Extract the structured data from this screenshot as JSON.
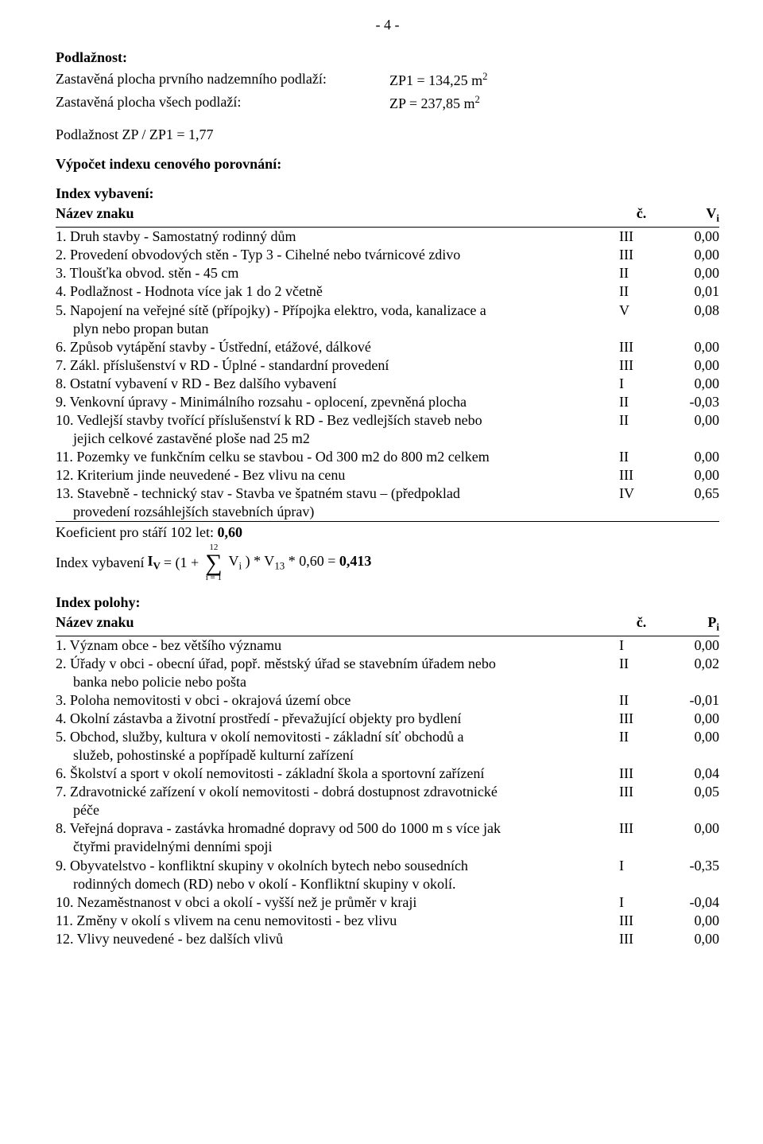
{
  "page_number": "- 4 -",
  "section1": {
    "title": "Podlažnost:",
    "line1a": "Zastavěná plocha prvního nadzemního podlaží:",
    "line1b_prefix": "ZP1 = 134,25 m",
    "line2a": "Zastavěná plocha všech podlaží:",
    "line2b_prefix": "ZP = 237,85 m",
    "sup": "2",
    "line3": "Podlažnost   ZP / ZP1 = 1,77"
  },
  "calc_title": "Výpočet indexu cenového porovnání:",
  "vyb": {
    "title": "Index vybavení:",
    "hdr_name": "Název znaku",
    "hdr_mark": "č.",
    "hdr_val_pre": "V",
    "hdr_val_sub": "i",
    "rows": [
      {
        "name": "1. Druh stavby - Samostatný rodinný dům",
        "mark": "III",
        "val": "0,00"
      },
      {
        "name": "2. Provedení obvodových stěn - Typ 3 - Cihelné nebo tvárnicové zdivo",
        "mark": "III",
        "val": "0,00"
      },
      {
        "name": "3. Tloušťka obvod. stěn - 45 cm",
        "mark": "II",
        "val": "0,00"
      },
      {
        "name": "4. Podlažnost - Hodnota více jak 1 do 2 včetně",
        "mark": "II",
        "val": "0,01"
      },
      {
        "name": "5. Napojení na veřejné sítě (přípojky) - Přípojka elektro, voda,  kanalizace  a",
        "mark": "V",
        "val": "0,08",
        "cont": "plyn nebo propan butan"
      },
      {
        "name": "6. Způsob vytápění stavby - Ústřední, etážové, dálkové",
        "mark": "III",
        "val": "0,00"
      },
      {
        "name": "7. Zákl. příslušenství v RD - Úplné - standardní provedení",
        "mark": "III",
        "val": "0,00"
      },
      {
        "name": "8. Ostatní vybavení v RD - Bez dalšího vybavení",
        "mark": "I",
        "val": "0,00"
      },
      {
        "name": "9. Venkovní úpravy - Minimálního rozsahu - oplocení, zpevněná plocha",
        "mark": "II",
        "val": "-0,03"
      },
      {
        "name": "10. Vedlejší stavby tvořící příslušenství k RD - Bez vedlejších staveb nebo",
        "mark": "II",
        "val": "0,00",
        "cont": "jejich celkové zastavěné  ploše  nad 25 m2"
      },
      {
        "name": "11. Pozemky ve funkčním celku  se stavbou - Od 300 m2 do 800 m2 celkem",
        "mark": "II",
        "val": "0,00"
      },
      {
        "name": "12. Kriterium jinde neuvedené - Bez vlivu na cenu",
        "mark": "III",
        "val": "0,00"
      },
      {
        "name": "13. Stavebně - technický stav - Stavba ve špatném stavu – (předpoklad",
        "mark": "IV",
        "val": "0,65",
        "cont": "provedení rozsáhlejších stavebních úprav)"
      }
    ],
    "coef_line_pre": "Koeficient pro stáří 102 let:   ",
    "coef_line_val": "0,60",
    "formula_pre": "Index vybavení ",
    "formula_I": "I",
    "formula_V": "V",
    "formula_eq1": " = (1 + ",
    "sigma_top": "12",
    "sigma_bot": "i = 1",
    "formula_Vi_pre": " V",
    "formula_Vi_sub": "i",
    "formula_mid": " ) * V",
    "formula_13": "13",
    "formula_tail": "  * 0,60 = ",
    "formula_result": "0,413"
  },
  "pol": {
    "title": "Index polohy:",
    "hdr_name": "Název znaku",
    "hdr_mark": "č.",
    "hdr_val_pre": "P",
    "hdr_val_sub": "i",
    "rows": [
      {
        "name": "1. Význam obce - bez většího významu",
        "mark": "I",
        "val": "0,00"
      },
      {
        "name": "2. Úřady v obci - obecní úřad, popř. městský úřad se stavebním úřadem nebo",
        "mark": "II",
        "val": "0,02",
        "cont": "banka nebo policie nebo pošta"
      },
      {
        "name": "3. Poloha nemovitosti v obci - okrajová území obce",
        "mark": "II",
        "val": "-0,01"
      },
      {
        "name": "4. Okolní zástavba a životní prostředí - převažující objekty pro bydlení",
        "mark": "III",
        "val": "0,00"
      },
      {
        "name": "5. Obchod, služby, kultura v okolí nemovitosti - základní síť obchodů a",
        "mark": "II",
        "val": "0,00",
        "cont": "služeb, pohostinské a popřípadě kulturní zařízení"
      },
      {
        "name": "6. Školství a sport v okolí nemovitosti - základní škola a sportovní zařízení",
        "mark": "III",
        "val": "0,04"
      },
      {
        "name": "7. Zdravotnické zařízení v okolí nemovitosti - dobrá dostupnost zdravotnické",
        "mark": "III",
        "val": "0,05",
        "cont": "péče"
      },
      {
        "name": "8. Veřejná doprava - zastávka hromadné dopravy od 500 do 1000 m s více jak",
        "mark": "III",
        "val": "0,00",
        "cont": "čtyřmi pravidelnými denními spoji"
      },
      {
        "name": "9. Obyvatelstvo - konfliktní skupiny v okolních bytech nebo sousedních",
        "mark": "I",
        "val": "-0,35",
        "cont": "rodinných domech (RD) nebo v okolí - Konfliktní skupiny v okolí."
      },
      {
        "name": "10. Nezaměstnanost v obci a okolí - vyšší než je průměr v kraji",
        "mark": "I",
        "val": "-0,04"
      },
      {
        "name": "11. Změny v okolí s vlivem na cenu nemovitosti - bez vlivu",
        "mark": "III",
        "val": "0,00"
      },
      {
        "name": "12. Vlivy neuvedené - bez dalších vlivů",
        "mark": "III",
        "val": "0,00"
      }
    ]
  }
}
